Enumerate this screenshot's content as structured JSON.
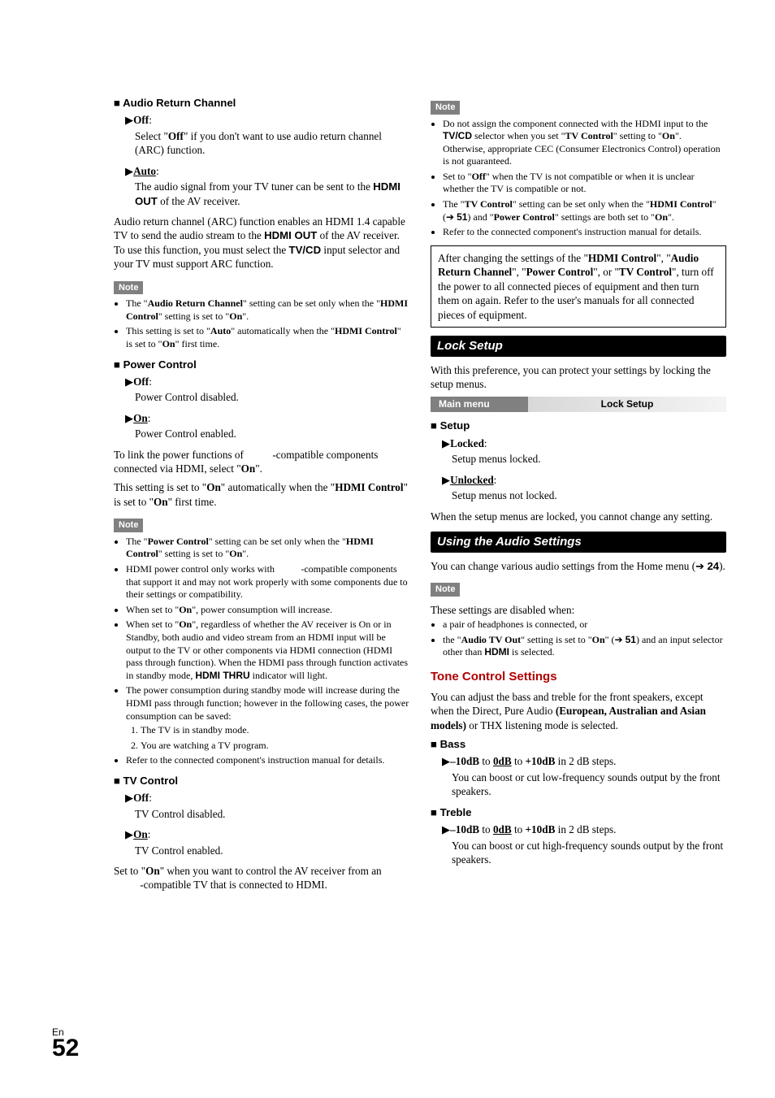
{
  "page": {
    "lang": "En",
    "number": "52"
  },
  "left": {
    "arc": {
      "heading": "Audio Return Channel",
      "opts": [
        {
          "label": "Off",
          "desc_pre": "Select \"",
          "desc_bold": "Off",
          "desc_post": "\" if you don't want to use audio return channel (ARC) function."
        },
        {
          "label": "Auto",
          "underline": true,
          "desc_pre": "The audio signal from your TV tuner can be sent to the ",
          "desc_bold": "HDMI OUT",
          "desc_post": " of the AV receiver."
        }
      ],
      "para": "Audio return channel (ARC) function enables an HDMI 1.4 capable TV to send the audio stream to the <b class=\"boldsans\">HDMI OUT</b> of the AV receiver. To use this function, you must select the <b class=\"boldsans\">TV/CD</b> input selector and your TV must support ARC function.",
      "note_label": "Note",
      "notes": [
        "The \"<b>Audio Return Channel</b>\" setting can be set only when the \"<b>HDMI Control</b>\" setting is set to \"<b>On</b>\".",
        "This setting is set to \"<b>Auto</b>\" automatically when the \"<b>HDMI Control</b>\" is set to \"<b>On</b>\" first time."
      ]
    },
    "power": {
      "heading": "Power Control",
      "opts": [
        {
          "label": "Off",
          "desc": "Power Control disabled."
        },
        {
          "label": "On",
          "underline": true,
          "desc": "Power Control enabled."
        }
      ],
      "para1": "To link the power functions of <span style=\"visibility:hidden\">RIHD</span>-compatible components connected via HDMI, select \"<b>On</b>\".",
      "para2": "This setting is set to \"<b>On</b>\" automatically when the \"<b>HDMI Control</b>\" is set to \"<b>On</b>\" first time.",
      "note_label": "Note",
      "notes": [
        "The \"<b>Power Control</b>\" setting can be set only when the \"<b>HDMI Control</b>\" setting is set to \"<b>On</b>\".",
        "HDMI power control only works with <span style=\"visibility:hidden\">RIHD</span>-compatible components that support it and may not work properly with some components due to their settings or compatibility.",
        "When set to \"<b>On</b>\", power consumption will increase.",
        "When set to \"<b>On</b>\", regardless of whether the AV receiver is On or in Standby, both audio and video stream from an HDMI input will be output to the TV or other components via HDMI connection (HDMI pass through function). When the HDMI pass through function activates in standby mode, <b class=\"boldsans\">HDMI THRU</b> indicator will light.",
        "The power consumption during standby mode will increase during the HDMI pass through function; however in the following cases, the power consumption can be saved:<ol class=\"ol-inner\"><li>The TV is in standby mode.</li><li>You are watching a TV program.</li></ol>",
        "Refer to the connected component's instruction manual for details."
      ]
    },
    "tvcontrol": {
      "heading": "TV Control",
      "opts": [
        {
          "label": "Off",
          "desc": "TV Control disabled."
        },
        {
          "label": "On",
          "underline": true,
          "desc": "TV Control enabled."
        }
      ],
      "para": "Set to \"<b>On</b>\" when you want to control the AV receiver from an <span style=\"visibility:hidden\">RIHD</span>-compatible TV that is connected to HDMI."
    }
  },
  "right": {
    "topnote": {
      "label": "Note",
      "notes": [
        "Do not assign the component connected with the HDMI input to the <b class=\"boldsans\">TV/CD</b> selector when you set \"<b>TV Control</b>\" setting to \"<b>On</b>\". Otherwise, appropriate CEC (Consumer Electronics Control) operation is not guaranteed.",
        "Set to \"<b>Off</b>\" when the TV is not compatible or when it is unclear whether the TV is compatible or not.",
        "The \"<b>TV Control</b>\" setting can be set only when the \"<b>HDMI Control</b>\" (➔ <b class=\"boldsans\">51</b>) and \"<b>Power Control</b>\" settings are both set to \"<b>On</b>\".",
        "Refer to the connected component's instruction manual for details."
      ]
    },
    "boxed": "After changing the settings of the \"<b>HDMI Control</b>\", \"<b>Audio Return Channel</b>\", \"<b>Power Control</b>\", or \"<b>TV Control</b>\", turn off the power to all connected pieces of equipment and then turn them on again. Refer to the user's manuals for all connected pieces of equipment.",
    "lock": {
      "title": "Lock Setup",
      "intro": "With this preference, you can protect your settings by locking the setup menus.",
      "menu_label": "Main menu",
      "menu_value": "Lock Setup",
      "heading": "Setup",
      "opts": [
        {
          "label": "Locked",
          "desc": "Setup menus locked."
        },
        {
          "label": "Unlocked",
          "underline": true,
          "desc": "Setup menus not locked."
        }
      ],
      "para": "When the setup menus are locked, you cannot change any setting."
    },
    "audio": {
      "title": "Using the Audio Settings",
      "intro": "You can change various audio settings from the Home menu (➔ <b class=\"boldsans\">24</b>).",
      "note_label": "Note",
      "note_intro": "These settings are disabled when:",
      "notes": [
        "a pair of headphones is connected, or",
        "the \"<b>Audio TV Out</b>\" setting is set to \"<b>On</b>\" (➔ <b class=\"boldsans\">51</b>) and an input selector other than <b class=\"boldsans\">HDMI</b> is selected."
      ]
    },
    "tone": {
      "heading": "Tone Control Settings",
      "intro": "You can adjust the bass and treble for the front speakers, except when the Direct, Pure Audio <b>(European, Australian and Asian models)</b> or THX listening mode is selected.",
      "bass": {
        "heading": "Bass",
        "range": "<b>–10dB</b> to <b class=\"under\">0dB</b> to <b>+10dB</b> in 2 dB steps.",
        "desc": "You can boost or cut low-frequency sounds output by the front speakers."
      },
      "treble": {
        "heading": "Treble",
        "range": "<b>–10dB</b> to <b class=\"under\">0dB</b> to <b>+10dB</b> in 2 dB steps.",
        "desc": "You can boost or cut high-frequency sounds output by the front speakers."
      }
    }
  }
}
